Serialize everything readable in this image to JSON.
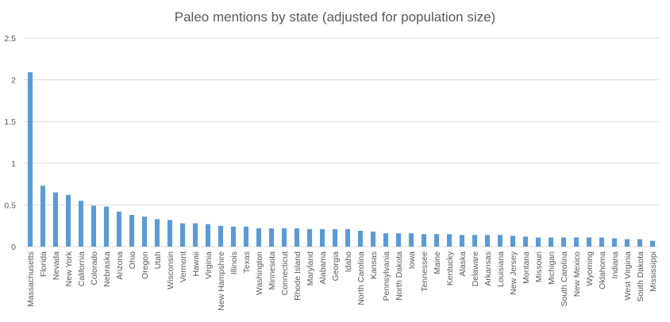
{
  "chart_data": {
    "type": "bar",
    "title": "Paleo mentions by state (adjusted for population size)",
    "xlabel": "",
    "ylabel": "",
    "ylim": [
      0,
      2.5
    ],
    "yticks": [
      "0",
      "0.5",
      "1",
      "1.5",
      "2",
      "2.5"
    ],
    "grid": "horizontal",
    "legend": "none",
    "bar_color": "#5b9bd5",
    "categories": [
      "Massachusetts",
      "Florida",
      "Nevada",
      "New York",
      "California",
      "Colorado",
      "Nebraska",
      "Arizona",
      "Ohio",
      "Oregon",
      "Utah",
      "Wisconsin",
      "Vermont",
      "Hawaii",
      "Virginia",
      "New Hampshire",
      "Illinois",
      "Texas",
      "Washington",
      "Minnesota",
      "Connecticut",
      "Rhode Island",
      "Maryland",
      "Alabama",
      "Georgia",
      "Idaho",
      "North Carolina",
      "Kansas",
      "Pennsylvania",
      "North Dakota",
      "Iowa",
      "Tennessee",
      "Maine",
      "Kentucky",
      "Alaska",
      "Delaware",
      "Arkansas",
      "Louisiana",
      "New Jersey",
      "Montana",
      "Missouri",
      "Michigan",
      "South Carolina",
      "New Mexico",
      "Wyoming",
      "Oklahoma",
      "Indiana",
      "West Virginia",
      "South Dakota",
      "Mississippi"
    ],
    "values": [
      2.09,
      0.73,
      0.65,
      0.62,
      0.55,
      0.49,
      0.48,
      0.42,
      0.38,
      0.36,
      0.33,
      0.32,
      0.28,
      0.28,
      0.27,
      0.25,
      0.24,
      0.24,
      0.22,
      0.22,
      0.22,
      0.22,
      0.21,
      0.21,
      0.21,
      0.21,
      0.19,
      0.18,
      0.16,
      0.16,
      0.16,
      0.15,
      0.15,
      0.15,
      0.14,
      0.14,
      0.14,
      0.14,
      0.13,
      0.12,
      0.11,
      0.11,
      0.11,
      0.11,
      0.11,
      0.11,
      0.1,
      0.09,
      0.09,
      0.07
    ]
  }
}
